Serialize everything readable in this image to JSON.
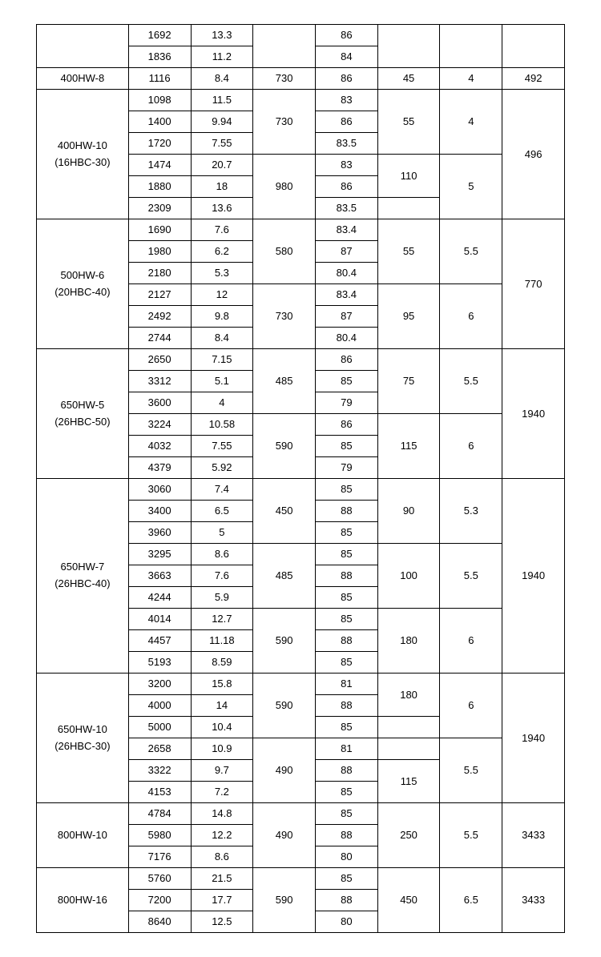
{
  "widths": {
    "c0": "15.5%",
    "c1": "9.5%",
    "c2": "11%",
    "c3": "11%",
    "c4": "11%",
    "c5": "11%",
    "c6": "11%",
    "c7": "11%"
  },
  "rows": [
    {
      "c0": "",
      "c1": "1692",
      "c2": "13.3",
      "c3": "",
      "c4": "86",
      "c5": "",
      "c6": "",
      "c7": "",
      "r0": 2,
      "r3": 2,
      "r5": 2,
      "r6": 2,
      "r7": 2
    },
    {
      "c1": "1836",
      "c2": "11.2",
      "c4": "84"
    },
    {
      "c0": "400HW-8",
      "c1": "1116",
      "c2": "8.4",
      "c3": "730",
      "c4": "86",
      "c5": "45",
      "c6": "4",
      "c7": "492"
    },
    {
      "c0": "400HW-10<br>(16HBC-30)",
      "c1": "1098",
      "c2": "11.5",
      "c3": "730",
      "c4": "83",
      "c5": "55",
      "c6": "4",
      "c7": "496",
      "r0": 6,
      "r3": 3,
      "r5": 3,
      "r6": 3,
      "r7": 6,
      "model": true
    },
    {
      "c1": "1400",
      "c2": "9.94",
      "c4": "86"
    },
    {
      "c1": "1720",
      "c2": "7.55",
      "c4": "83.5"
    },
    {
      "c1": "1474",
      "c2": "20.7",
      "c3": "980",
      "c4": "83",
      "c5": "110",
      "c6": "5",
      "r3": 3,
      "r5": 2,
      "r6": 3
    },
    {
      "c1": "1880",
      "c2": "18",
      "c4": "86"
    },
    {
      "c1": "2309",
      "c2": "13.6",
      "c4": "83.5",
      "c5": "",
      "r5": 1
    },
    {
      "c0": "500HW-6<br>(20HBC-40)",
      "c1": "1690",
      "c2": "7.6",
      "c3": "580",
      "c4": "83.4",
      "c5": "55",
      "c6": "5.5",
      "c7": "770",
      "r0": 6,
      "r3": 3,
      "r5": 3,
      "r6": 3,
      "r7": 6,
      "model": true
    },
    {
      "c1": "1980",
      "c2": "6.2",
      "c4": "87"
    },
    {
      "c1": "2180",
      "c2": "5.3",
      "c4": "80.4"
    },
    {
      "c1": "2127",
      "c2": "12",
      "c3": "730",
      "c4": "83.4",
      "c5": "95",
      "c6": "6",
      "r3": 3,
      "r5": 3,
      "r6": 3
    },
    {
      "c1": "2492",
      "c2": "9.8",
      "c4": "87"
    },
    {
      "c1": "2744",
      "c2": "8.4",
      "c4": "80.4"
    },
    {
      "c0": "650HW-5<br>(26HBC-50)",
      "c1": "2650",
      "c2": "7.15",
      "c3": "485",
      "c4": "86",
      "c5": "75",
      "c6": "5.5",
      "c7": "1940",
      "r0": 6,
      "r3": 3,
      "r5": 3,
      "r6": 3,
      "r7": 6,
      "model": true
    },
    {
      "c1": "3312",
      "c2": "5.1",
      "c4": "85"
    },
    {
      "c1": "3600",
      "c2": "4",
      "c4": "79"
    },
    {
      "c1": "3224",
      "c2": "10.58",
      "c3": "590",
      "c4": "86",
      "c5": "115",
      "c6": "6",
      "r3": 3,
      "r5": 3,
      "r6": 3
    },
    {
      "c1": "4032",
      "c2": "7.55",
      "c4": "85"
    },
    {
      "c1": "4379",
      "c2": "5.92",
      "c4": "79"
    },
    {
      "c0": "650HW-7<br>(26HBC-40)",
      "c1": "3060",
      "c2": "7.4",
      "c3": "450",
      "c4": "85",
      "c5": "90",
      "c6": "5.3",
      "c7": "1940",
      "r0": 9,
      "r3": 3,
      "r5": 3,
      "r6": 3,
      "r7": 9,
      "model": true
    },
    {
      "c1": "3400",
      "c2": "6.5",
      "c4": "88"
    },
    {
      "c1": "3960",
      "c2": "5",
      "c4": "85"
    },
    {
      "c1": "3295",
      "c2": "8.6",
      "c3": "485",
      "c4": "85",
      "c5": "100",
      "c6": "5.5",
      "r3": 3,
      "r5": 3,
      "r6": 3
    },
    {
      "c1": "3663",
      "c2": "7.6",
      "c4": "88"
    },
    {
      "c1": "4244",
      "c2": "5.9",
      "c4": "85"
    },
    {
      "c1": "4014",
      "c2": "12.7",
      "c3": "590",
      "c4": "85",
      "c5": "180",
      "c6": "6",
      "r3": 3,
      "r5": 3,
      "r6": 3
    },
    {
      "c1": "4457",
      "c2": "11.18",
      "c4": "88"
    },
    {
      "c1": "5193",
      "c2": "8.59",
      "c4": "85"
    },
    {
      "c0": "650HW-10<br>(26HBC-30)",
      "c1": "3200",
      "c2": "15.8",
      "c3": "590",
      "c4": "81",
      "c5": "180",
      "c6": "6",
      "c7": "1940",
      "r0": 6,
      "r3": 3,
      "r5": 2,
      "r6": 3,
      "r7": 6,
      "model": true
    },
    {
      "c1": "4000",
      "c2": "14",
      "c4": "88"
    },
    {
      "c1": "5000",
      "c2": "10.4",
      "c4": "85",
      "c5": "",
      "r5": 1
    },
    {
      "c1": "2658",
      "c2": "10.9",
      "c3": "490",
      "c4": "81",
      "c5": "",
      "c6": "5.5",
      "r3": 3,
      "r5": 1,
      "r6": 3
    },
    {
      "c1": "3322",
      "c2": "9.7",
      "c4": "88",
      "c5": "115",
      "r5": 2
    },
    {
      "c1": "4153",
      "c2": "7.2",
      "c4": "85"
    },
    {
      "c0": "800HW-10",
      "c1": "4784",
      "c2": "14.8",
      "c3": "490",
      "c4": "85",
      "c5": "250",
      "c6": "5.5",
      "c7": "3433",
      "r0": 3,
      "r3": 3,
      "r5": 3,
      "r6": 3,
      "r7": 3
    },
    {
      "c1": "5980",
      "c2": "12.2",
      "c4": "88"
    },
    {
      "c1": "7176",
      "c2": "8.6",
      "c4": "80"
    },
    {
      "c0": "800HW-16",
      "c1": "5760",
      "c2": "21.5",
      "c3": "590",
      "c4": "85",
      "c5": "450",
      "c6": "6.5",
      "c7": "3433",
      "r0": 3,
      "r3": 3,
      "r5": 3,
      "r6": 3,
      "r7": 3
    },
    {
      "c1": "7200",
      "c2": "17.7",
      "c4": "88"
    },
    {
      "c1": "8640",
      "c2": "12.5",
      "c4": "80"
    }
  ]
}
